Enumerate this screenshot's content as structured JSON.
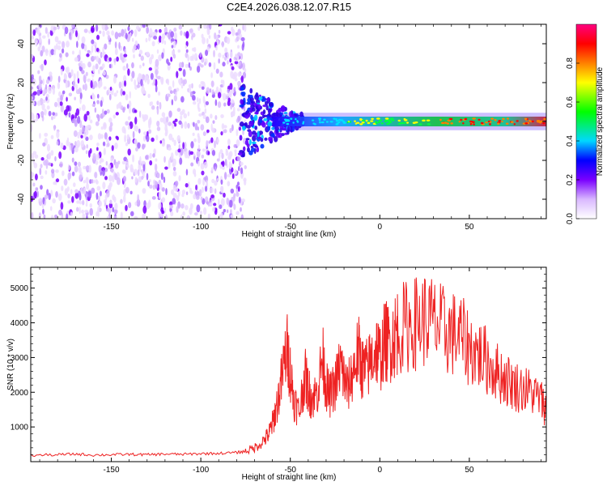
{
  "chart_data": [
    {
      "type": "heatmap",
      "title": "C2E4.2026.038.12.07.R15",
      "xlabel": "Height of straight line (km)",
      "ylabel": "Frequency (Hz)",
      "xlim": [
        -195,
        93
      ],
      "ylim": [
        -50,
        50
      ],
      "xticks": [
        -150,
        -100,
        -50,
        0,
        50
      ],
      "yticks": [
        -40,
        -20,
        0,
        20,
        40
      ],
      "colorbar": {
        "label": "Normalized spectral amplitude",
        "range": [
          0,
          1
        ],
        "ticks": [
          "0.0",
          "0.2",
          "0.4",
          "0.6",
          "0.8"
        ],
        "colormap": [
          "#ffffff",
          "#d9b8ff",
          "#7a00ff",
          "#0000ff",
          "#00d8ff",
          "#00ff00",
          "#ffff00",
          "#ff8000",
          "#ff0000",
          "#ff0080"
        ]
      },
      "features": [
        {
          "x_range": [
            -195,
            -75
          ],
          "description": "broadband noise, low amplitude"
        },
        {
          "x_range": [
            -75,
            93
          ],
          "center_frequency_hz": 0,
          "description": "narrow signal band near 0 Hz, amplitude increasing with height"
        }
      ]
    },
    {
      "type": "line",
      "xlabel": "Height of straight line (km)",
      "ylabel": "SNR (10 * v/v)",
      "xlim": [
        -195,
        93
      ],
      "ylim": [
        0,
        5600
      ],
      "xticks": [
        -150,
        -100,
        -50,
        0,
        50
      ],
      "yticks": [
        1000,
        2000,
        3000,
        4000,
        5000
      ],
      "series": [
        {
          "color": "#ee2222",
          "x": [
            -195,
            -180,
            -170,
            -160,
            -150,
            -140,
            -130,
            -120,
            -110,
            -100,
            -90,
            -80,
            -75,
            -70,
            -65,
            -62,
            -60,
            -58,
            -55,
            -52,
            -50,
            -48,
            -45,
            -42,
            -40,
            -38,
            -35,
            -32,
            -30,
            -28,
            -25,
            -22,
            -20,
            -18,
            -15,
            -12,
            -10,
            -8,
            -5,
            -2,
            0,
            3,
            5,
            8,
            10,
            15,
            20,
            25,
            30,
            35,
            40,
            45,
            50,
            55,
            60,
            65,
            70,
            75,
            80,
            85,
            90,
            93
          ],
          "y": [
            180,
            200,
            220,
            190,
            200,
            210,
            200,
            220,
            210,
            230,
            240,
            260,
            300,
            400,
            600,
            800,
            1100,
            1500,
            2300,
            3300,
            2600,
            1800,
            1400,
            2500,
            2100,
            1800,
            2000,
            3000,
            2200,
            1900,
            2200,
            2800,
            2400,
            2100,
            2600,
            3200,
            2700,
            2600,
            2900,
            3300,
            3000,
            3500,
            3400,
            3600,
            3800,
            3900,
            4000,
            4100,
            4000,
            3800,
            3700,
            3600,
            3300,
            3100,
            2900,
            2600,
            2400,
            2200,
            2100,
            2000,
            1800,
            1500
          ]
        }
      ]
    }
  ]
}
